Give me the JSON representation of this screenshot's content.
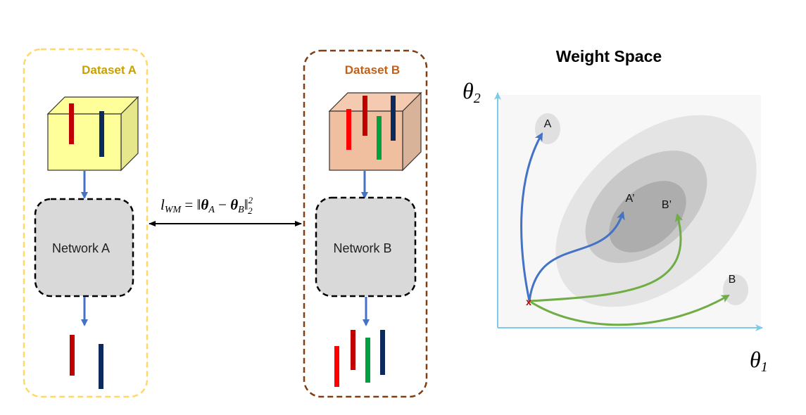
{
  "dataset_a": {
    "title": "Dataset A",
    "network_label": "Network A",
    "color": "#c9a000"
  },
  "dataset_b": {
    "title": "Dataset B",
    "network_label": "Network B",
    "color": "#c0601b"
  },
  "loss": {
    "l": "l",
    "sub_wm": "WM",
    "eq": " = ‖",
    "theta": "θ",
    "sub_a": "A",
    "minus": " − ",
    "sub_b": "B",
    "norm_close": "‖",
    "sup": "2",
    "sub_2": "2"
  },
  "weight_space": {
    "title": "Weight Space",
    "axis_y_symbol": "θ",
    "axis_y_sub": "2",
    "axis_x_symbol": "θ",
    "axis_x_sub": "1",
    "points": {
      "a": "A",
      "a_prime": "A’",
      "b_prime": "B’",
      "b": "B",
      "start": "x"
    }
  },
  "colors": {
    "red": "#c00000",
    "bright_red": "#ff0000",
    "navy": "#0d2a5c",
    "green": "#00a040",
    "blue_arrow": "#4472c4",
    "green_arrow": "#70ad47",
    "axis": "#7ccbe8"
  }
}
